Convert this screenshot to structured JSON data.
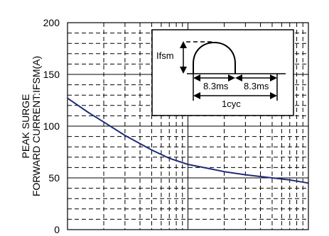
{
  "chart_data": {
    "type": "line",
    "title": "",
    "xlabel": "",
    "ylabel_line1": "PEAK SURGE",
    "ylabel_line2": "FORWARD CURRENT:IFSM(A)",
    "ylim": [
      0,
      200
    ],
    "yticks": [
      0,
      50,
      100,
      150,
      200
    ],
    "xscale": "log",
    "xlim": [
      1,
      100
    ],
    "grid": true,
    "series": [
      {
        "color": "#1f2d7a",
        "x": [
          1,
          1.5,
          2,
          3,
          5,
          7,
          10,
          15,
          20,
          30,
          50,
          70,
          100
        ],
        "y": [
          127,
          113,
          104,
          91,
          77,
          69,
          63,
          59,
          56,
          53,
          50,
          48,
          45
        ]
      }
    ],
    "inset": {
      "label_ifsm": "Ifsm",
      "label_half_cycle_1": "8.3ms",
      "label_half_cycle_2": "8.3ms",
      "label_cycle": "1cyc"
    }
  }
}
